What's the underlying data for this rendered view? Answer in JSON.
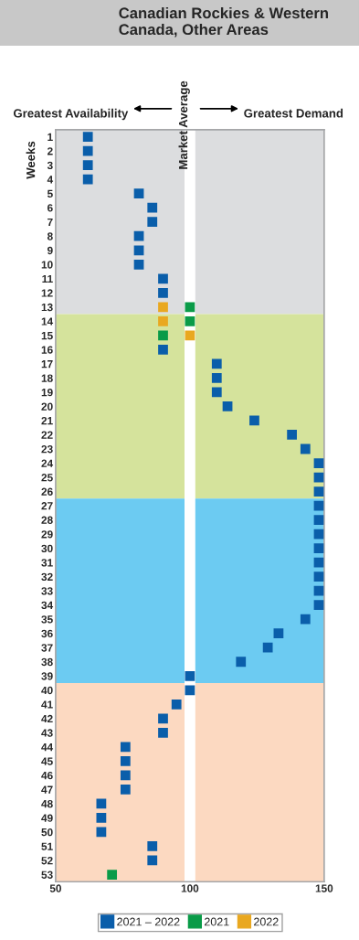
{
  "chart_data": {
    "type": "scatter",
    "title": "Canadian Rockies & Western Canada, Other Areas",
    "ylabel": "Weeks",
    "annotations": [
      "Greatest Availability",
      "Greatest Demand"
    ],
    "xlim": [
      50,
      150
    ],
    "xticks": [
      50,
      100,
      150
    ],
    "ylim": [
      53.5,
      0.5
    ],
    "yticks": [
      1,
      2,
      3,
      4,
      5,
      6,
      7,
      8,
      9,
      10,
      11,
      12,
      13,
      14,
      15,
      16,
      17,
      18,
      19,
      20,
      21,
      22,
      23,
      24,
      25,
      26,
      27,
      28,
      29,
      30,
      31,
      32,
      33,
      34,
      35,
      36,
      37,
      38,
      39,
      40,
      41,
      42,
      43,
      44,
      45,
      46,
      47,
      48,
      49,
      50,
      51,
      52,
      53
    ],
    "marker": "square",
    "legend": "bottom",
    "ref_lines": [
      {
        "axis": "x",
        "value": 100,
        "label": "Market Average",
        "color": "#ffffff"
      }
    ],
    "bands": [
      {
        "axis": "y",
        "from": 0.5,
        "to": 13.5,
        "color": "#dcdddf"
      },
      {
        "axis": "y",
        "from": 13.5,
        "to": 26.5,
        "color": "#d5e39c"
      },
      {
        "axis": "y",
        "from": 26.5,
        "to": 39.5,
        "color": "#6ccbf2"
      },
      {
        "axis": "y",
        "from": 39.5,
        "to": 53.5,
        "color": "#fcd9c1"
      }
    ],
    "series": [
      {
        "name": "2021 – 2022",
        "color": "#0a5eaa",
        "x": [
          62,
          62,
          62,
          62,
          81,
          86,
          86,
          81,
          81,
          81,
          90,
          90,
          90,
          110,
          110,
          110,
          114,
          124,
          138,
          143,
          148,
          148,
          148,
          148,
          148,
          148,
          148,
          148,
          148,
          148,
          148,
          143,
          133,
          129,
          119,
          100,
          100,
          95,
          90,
          90,
          76,
          76,
          76,
          76,
          67,
          67,
          67,
          86,
          86
        ],
        "values": [
          1,
          2,
          3,
          4,
          5,
          6,
          7,
          8,
          9,
          10,
          11,
          12,
          16,
          17,
          18,
          19,
          20,
          21,
          22,
          23,
          24,
          25,
          26,
          27,
          28,
          29,
          30,
          31,
          32,
          33,
          34,
          35,
          36,
          37,
          38,
          39,
          40,
          41,
          42,
          43,
          44,
          45,
          46,
          47,
          48,
          49,
          50,
          51,
          52
        ]
      },
      {
        "name": "2021",
        "color": "#0a9b48",
        "x": [
          100,
          100,
          90,
          71
        ],
        "values": [
          13,
          14,
          15,
          53
        ]
      },
      {
        "name": "2022",
        "color": "#e9a820",
        "x": [
          90,
          90,
          100
        ],
        "values": [
          13,
          14,
          15
        ]
      }
    ]
  }
}
